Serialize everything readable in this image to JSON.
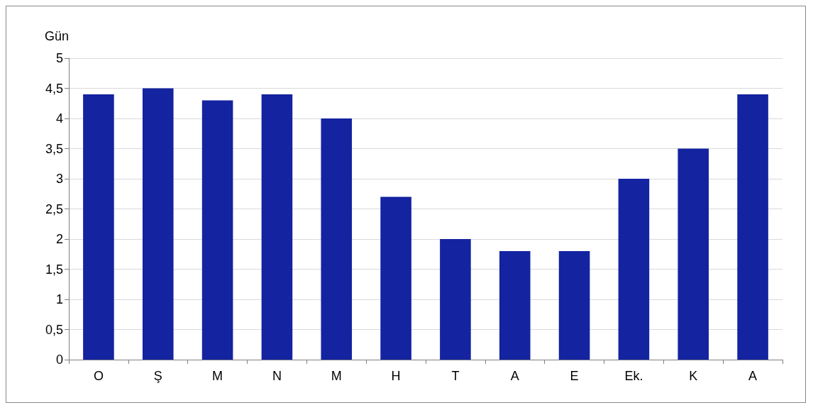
{
  "chart_data": {
    "type": "bar",
    "ylabel": "Gün",
    "categories": [
      "O",
      "Ş",
      "M",
      "N",
      "M",
      "H",
      "T",
      "A",
      "E",
      "Ek.",
      "K",
      "A"
    ],
    "values": [
      4.4,
      4.5,
      4.3,
      4.4,
      4.0,
      2.7,
      2.0,
      1.8,
      1.8,
      3.0,
      3.5,
      4.4
    ],
    "color": "#1423a0",
    "ylim": [
      0,
      5
    ],
    "yticks": [
      0,
      {
        "value": 0.5,
        "label": "0,5"
      },
      1,
      {
        "value": 1.5,
        "label": "1,5"
      },
      2,
      {
        "value": 2.5,
        "label": "2,5"
      },
      3,
      {
        "value": 3.5,
        "label": "3,5"
      },
      4,
      {
        "value": 4.5,
        "label": "4,5"
      },
      5
    ],
    "grid": "y"
  }
}
